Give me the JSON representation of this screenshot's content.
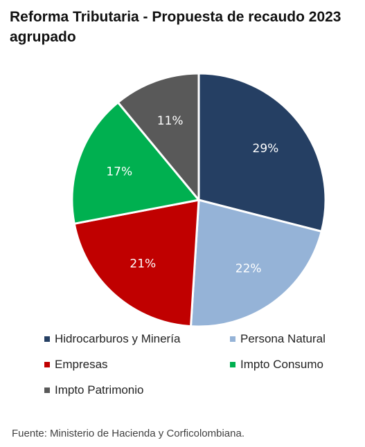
{
  "title": "Reforma Tributaria - Propuesta de recaudo 2023 agrupado",
  "source": "Fuente: Ministerio de Hacienda y Corficolombiana.",
  "chart_data": {
    "type": "pie",
    "title": "Reforma Tributaria - Propuesta de recaudo 2023 agrupado",
    "legend_position": "bottom",
    "slices": [
      {
        "name": "Hidrocarburos y Minería",
        "value": 29,
        "label": "29%",
        "color": "#253f63"
      },
      {
        "name": "Persona Natural",
        "value": 22,
        "label": "22%",
        "color": "#95b3d7"
      },
      {
        "name": "Empresas",
        "value": 21,
        "label": "21%",
        "color": "#c00000"
      },
      {
        "name": "Impto Consumo",
        "value": 17,
        "label": "17%",
        "color": "#00b050"
      },
      {
        "name": "Impto Patrimonio",
        "value": 11,
        "label": "11%",
        "color": "#595959"
      }
    ]
  }
}
